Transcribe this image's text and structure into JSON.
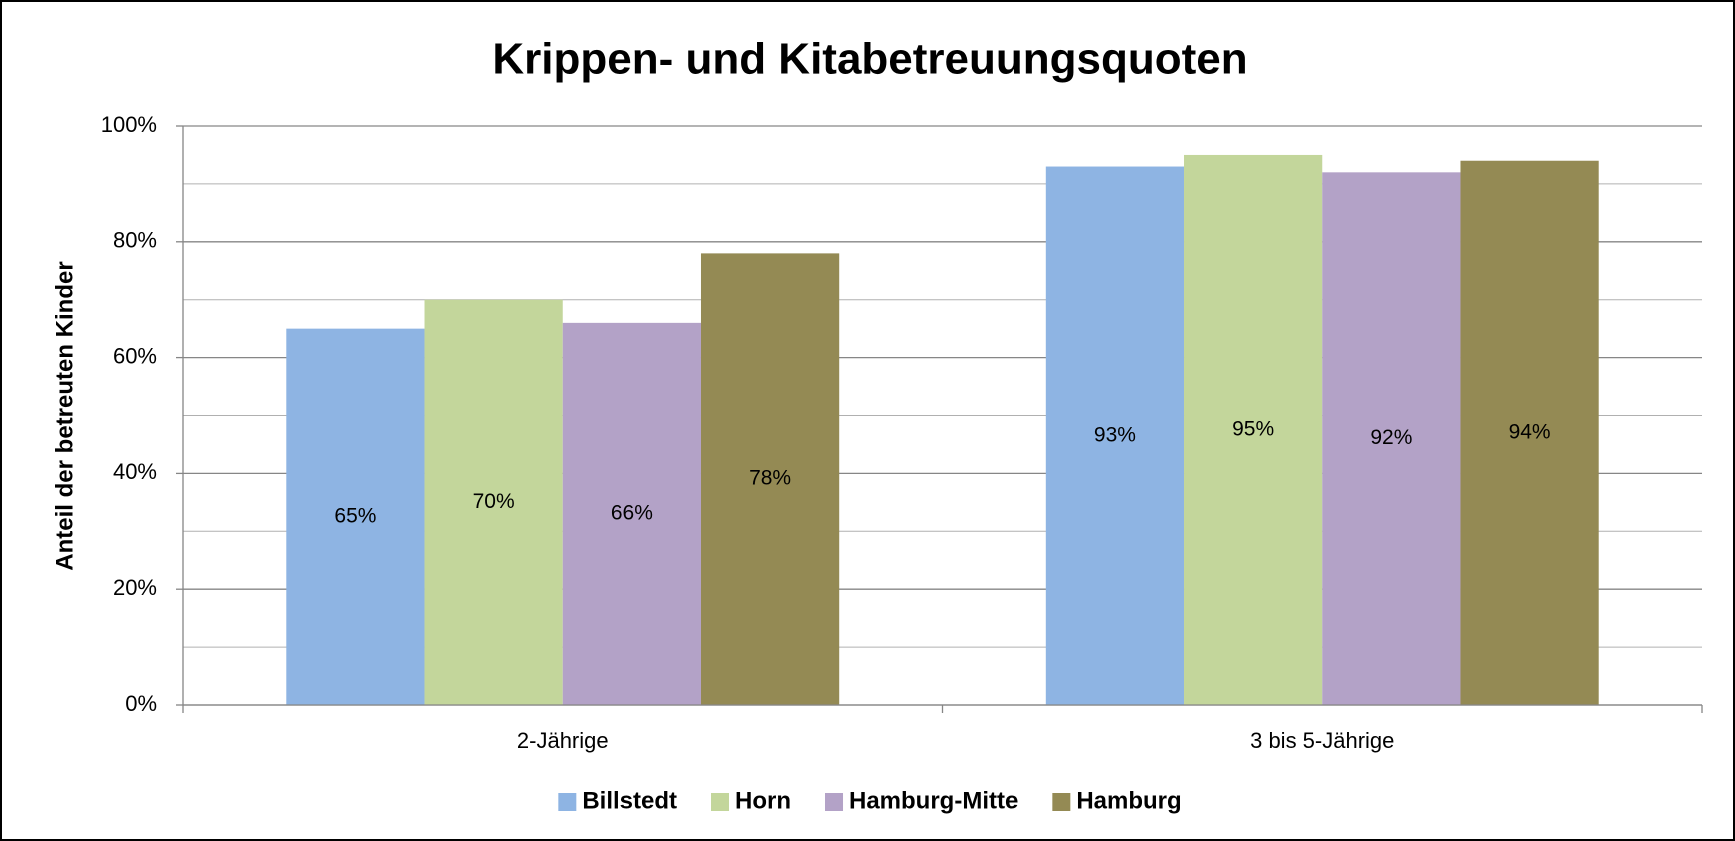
{
  "chart_data": {
    "type": "bar",
    "title": "Krippen- und Kitabetreuungsquoten",
    "y_label": "Anteil der betreuten Kinder",
    "categories": [
      "2-Jährige",
      "3 bis 5-Jährige"
    ],
    "series": [
      {
        "name": "Billstedt",
        "color": "#8eb4e3",
        "values": [
          65,
          93
        ],
        "value_labels": [
          "65%",
          "93%"
        ]
      },
      {
        "name": "Horn",
        "color": "#c3d69b",
        "values": [
          70,
          95
        ],
        "value_labels": [
          "70%",
          "95%"
        ]
      },
      {
        "name": "Hamburg-Mitte",
        "color": "#b3a2c7",
        "values": [
          66,
          92
        ],
        "value_labels": [
          "66%",
          "92%"
        ]
      },
      {
        "name": "Hamburg",
        "color": "#948a54",
        "values": [
          78,
          94
        ],
        "value_labels": [
          "78%",
          "94%"
        ]
      }
    ],
    "ylim": [
      0,
      100
    ],
    "yticks": [
      {
        "value": 0,
        "label": "0%"
      },
      {
        "value": 20,
        "label": "20%"
      },
      {
        "value": 40,
        "label": "40%"
      },
      {
        "value": 60,
        "label": "60%"
      },
      {
        "value": 80,
        "label": "80%"
      },
      {
        "value": 100,
        "label": "100%"
      }
    ],
    "minor_yticks": [
      10,
      30,
      50,
      70,
      90
    ],
    "grid": true,
    "legend": "bottom"
  }
}
